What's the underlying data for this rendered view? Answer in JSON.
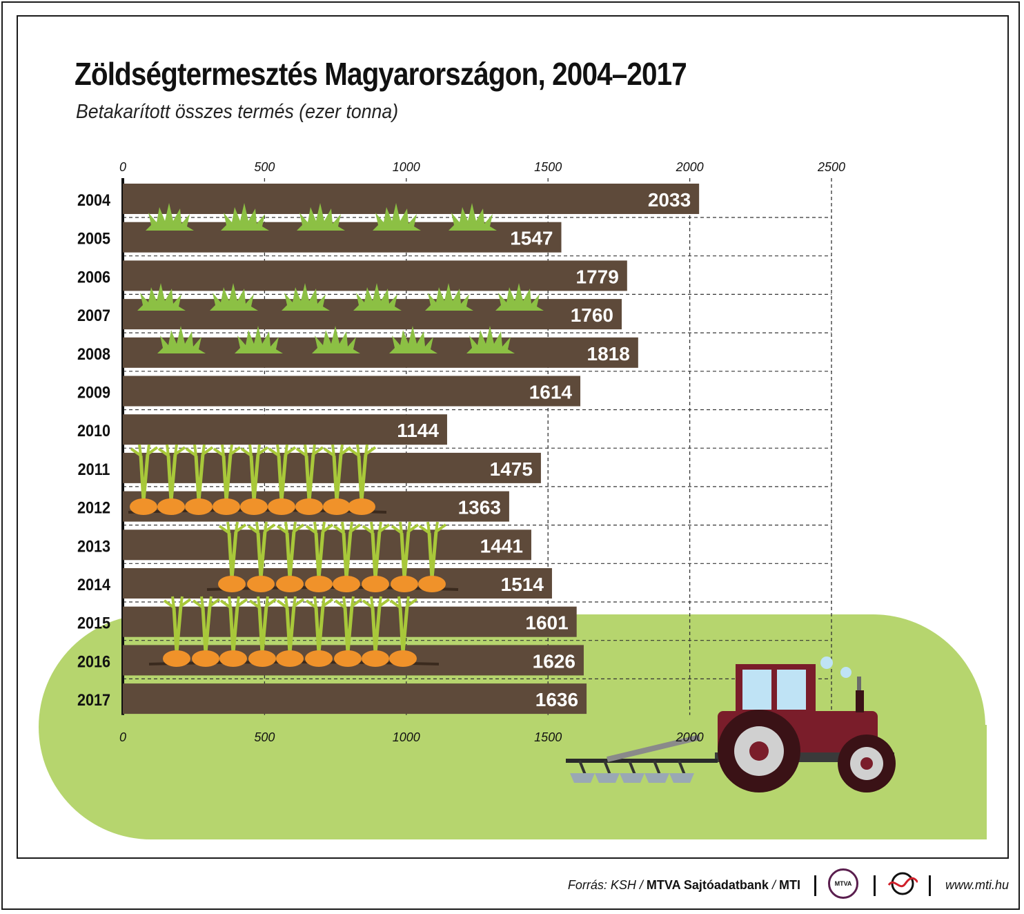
{
  "header": {
    "title": "Zöldségtermesztés Magyarországon, 2004–2017",
    "subtitle": "Betakarított összes termés (ezer tonna)"
  },
  "footer": {
    "source_prefix": "Forrás: KSH /",
    "source_org": "MTVA Sajtóadatbank",
    "source_sep": "/",
    "source_mti": "MTI",
    "mtva_logo": "MTVA",
    "website": "www.mti.hu"
  },
  "colors": {
    "bar": "#5e4a3a",
    "grass": "#8cc044",
    "field": "#b6d56e",
    "carrot": "#f0922a",
    "tractor": "#7a1d2a"
  },
  "chart_data": {
    "type": "bar",
    "orientation": "horizontal",
    "categories": [
      "2004",
      "2005",
      "2006",
      "2007",
      "2008",
      "2009",
      "2010",
      "2011",
      "2012",
      "2013",
      "2014",
      "2015",
      "2016",
      "2017"
    ],
    "values": [
      2033,
      1547,
      1779,
      1760,
      1818,
      1614,
      1144,
      1475,
      1363,
      1441,
      1514,
      1601,
      1626,
      1636
    ],
    "xlim": [
      0,
      2500
    ],
    "xticks": [
      0,
      500,
      1000,
      1500,
      2000,
      2500
    ],
    "grid": true,
    "data_labels": true
  }
}
